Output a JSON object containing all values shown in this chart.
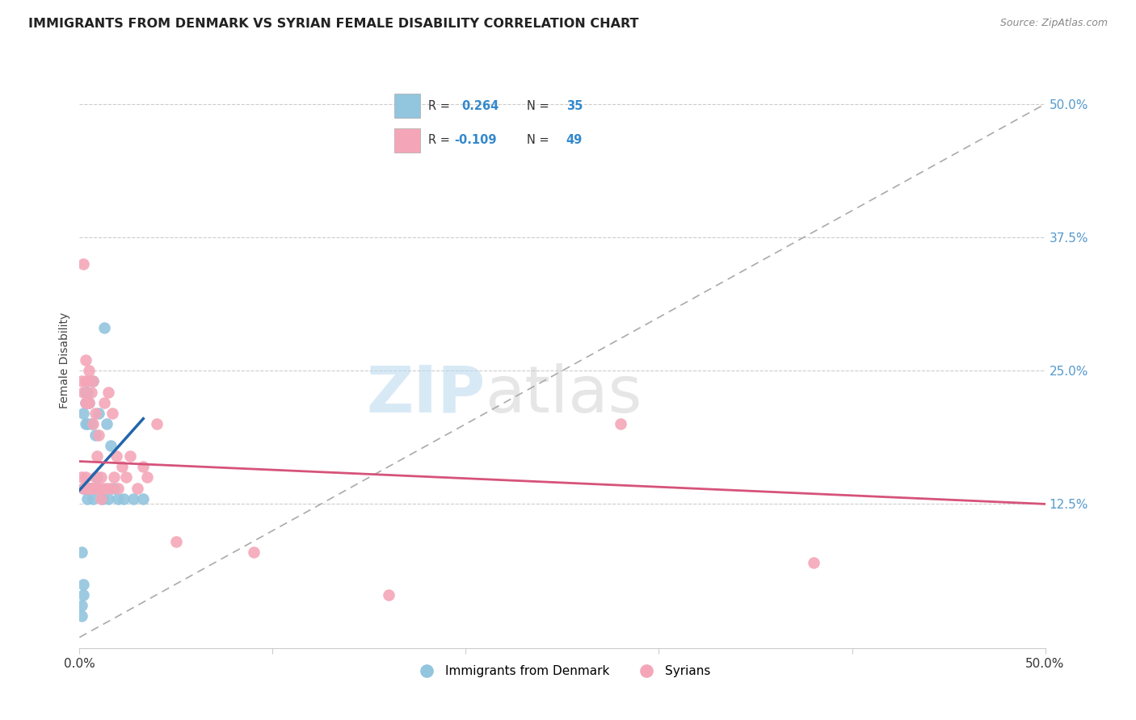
{
  "title": "IMMIGRANTS FROM DENMARK VS SYRIAN FEMALE DISABILITY CORRELATION CHART",
  "source": "Source: ZipAtlas.com",
  "ylabel": "Female Disability",
  "ytick_labels": [
    "12.5%",
    "25.0%",
    "37.5%",
    "50.0%"
  ],
  "ytick_values": [
    0.125,
    0.25,
    0.375,
    0.5
  ],
  "xlim": [
    0.0,
    0.5
  ],
  "ylim": [
    -0.01,
    0.53
  ],
  "legend_label_denmark": "Immigrants from Denmark",
  "legend_label_syrians": "Syrians",
  "blue_color": "#92C5DE",
  "pink_color": "#F4A6B8",
  "trend_blue": "#2166AC",
  "trend_pink": "#D6537A",
  "dashed_line_color": "#AAAAAA",
  "watermark_zip": "ZIP",
  "watermark_atlas": "atlas",
  "denmark_x": [
    0.001,
    0.001,
    0.001,
    0.002,
    0.002,
    0.002,
    0.002,
    0.003,
    0.003,
    0.003,
    0.003,
    0.004,
    0.004,
    0.004,
    0.005,
    0.005,
    0.006,
    0.006,
    0.007,
    0.007,
    0.008,
    0.008,
    0.009,
    0.01,
    0.01,
    0.012,
    0.013,
    0.014,
    0.015,
    0.016,
    0.018,
    0.02,
    0.023,
    0.028,
    0.033
  ],
  "denmark_y": [
    0.02,
    0.03,
    0.08,
    0.04,
    0.05,
    0.14,
    0.21,
    0.14,
    0.2,
    0.22,
    0.23,
    0.13,
    0.2,
    0.23,
    0.14,
    0.22,
    0.14,
    0.2,
    0.13,
    0.24,
    0.14,
    0.19,
    0.15,
    0.14,
    0.21,
    0.13,
    0.29,
    0.2,
    0.13,
    0.18,
    0.14,
    0.13,
    0.13,
    0.13,
    0.13
  ],
  "syrian_x": [
    0.001,
    0.001,
    0.002,
    0.002,
    0.002,
    0.003,
    0.003,
    0.003,
    0.003,
    0.004,
    0.004,
    0.004,
    0.005,
    0.005,
    0.005,
    0.006,
    0.006,
    0.007,
    0.007,
    0.007,
    0.008,
    0.008,
    0.009,
    0.009,
    0.01,
    0.01,
    0.011,
    0.011,
    0.012,
    0.013,
    0.014,
    0.015,
    0.016,
    0.017,
    0.018,
    0.019,
    0.02,
    0.022,
    0.024,
    0.026,
    0.03,
    0.033,
    0.035,
    0.04,
    0.05,
    0.09,
    0.16,
    0.28,
    0.38
  ],
  "syrian_y": [
    0.15,
    0.24,
    0.14,
    0.23,
    0.35,
    0.15,
    0.22,
    0.24,
    0.26,
    0.14,
    0.22,
    0.24,
    0.14,
    0.22,
    0.25,
    0.14,
    0.23,
    0.14,
    0.2,
    0.24,
    0.15,
    0.21,
    0.14,
    0.17,
    0.14,
    0.19,
    0.13,
    0.15,
    0.14,
    0.22,
    0.14,
    0.23,
    0.14,
    0.21,
    0.15,
    0.17,
    0.14,
    0.16,
    0.15,
    0.17,
    0.14,
    0.16,
    0.15,
    0.2,
    0.09,
    0.08,
    0.04,
    0.2,
    0.07
  ],
  "dk_trend_x": [
    0.0,
    0.033
  ],
  "dk_trend_y": [
    0.138,
    0.205
  ],
  "sy_trend_x": [
    0.0,
    0.5
  ],
  "sy_trend_y": [
    0.165,
    0.125
  ]
}
